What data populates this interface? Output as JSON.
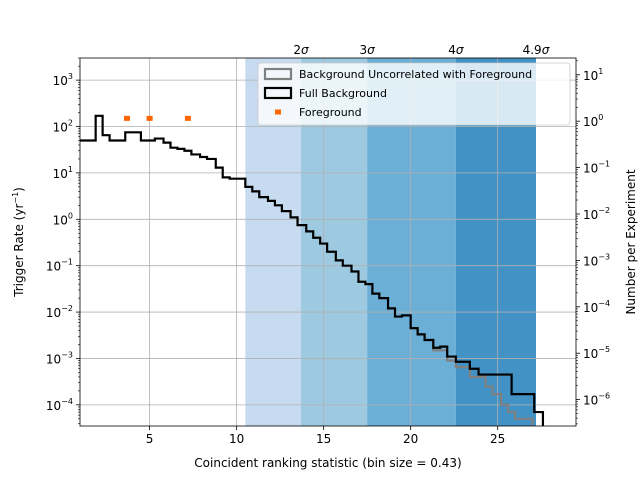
{
  "chart_data": {
    "type": "step-histogram",
    "xlabel": "Coincident ranking statistic (bin size = 0.43)",
    "ylabel_left": "Trigger Rate (yr",
    "ylabel_left_sup": "−1",
    "ylabel_left_close": ")",
    "ylabel_right": "Number per Experiment",
    "xlim": [
      1,
      29.5
    ],
    "ylim_left": [
      3.5e-05,
      3000
    ],
    "ylim_right": [
      2.7e-07,
      23
    ],
    "x_ticks": [
      5,
      10,
      15,
      20,
      25
    ],
    "y_left_ticks": [
      {
        "value": 0.0001,
        "base": "10",
        "exp": "−4"
      },
      {
        "value": 0.001,
        "base": "10",
        "exp": "−3"
      },
      {
        "value": 0.01,
        "base": "10",
        "exp": "−2"
      },
      {
        "value": 0.1,
        "base": "10",
        "exp": "−1"
      },
      {
        "value": 1,
        "base": "10",
        "exp": "0"
      },
      {
        "value": 10,
        "base": "10",
        "exp": "1"
      },
      {
        "value": 100,
        "base": "10",
        "exp": "2"
      },
      {
        "value": 1000,
        "base": "10",
        "exp": "3"
      }
    ],
    "y_right_ticks": [
      {
        "value": 1e-06,
        "base": "10",
        "exp": "−6"
      },
      {
        "value": 1e-05,
        "base": "10",
        "exp": "−5"
      },
      {
        "value": 0.0001,
        "base": "10",
        "exp": "−4"
      },
      {
        "value": 0.001,
        "base": "10",
        "exp": "−3"
      },
      {
        "value": 0.01,
        "base": "10",
        "exp": "−2"
      },
      {
        "value": 0.1,
        "base": "10",
        "exp": "−1"
      },
      {
        "value": 1,
        "base": "10",
        "exp": "0"
      },
      {
        "value": 10,
        "base": "10",
        "exp": "1"
      }
    ],
    "sigma_bands": [
      {
        "label": "2",
        "x_start": 10.5,
        "x_end": 13.7,
        "color": "#c6dbef"
      },
      {
        "label": "3",
        "x_start": 13.7,
        "x_end": 17.5,
        "color": "#9ecae1"
      },
      {
        "label": "4",
        "x_start": 17.5,
        "x_end": 22.6,
        "color": "#6baed6"
      },
      {
        "label": "4.9",
        "x_start": 22.6,
        "x_end": 27.2,
        "color": "#4292c6"
      }
    ],
    "sigma_symbol": "σ",
    "legend": {
      "placement": "upper-right",
      "entries": [
        {
          "label": "Background Uncorrelated with Foreground",
          "style": "box",
          "color": "#808080"
        },
        {
          "label": "Full Background",
          "style": "box",
          "color": "#000000"
        },
        {
          "label": "Foreground",
          "style": "marker",
          "color": "#ff6600"
        }
      ]
    },
    "series": [
      {
        "name": "Full Background",
        "color": "#000000",
        "edges": [
          1.0,
          1.9,
          2.3,
          2.7,
          3.6,
          4.5,
          5.3,
          5.8,
          6.2,
          6.6,
          7.0,
          7.4,
          7.9,
          8.3,
          8.8,
          9.2,
          9.6,
          10.0,
          10.5,
          10.9,
          11.3,
          11.8,
          12.2,
          12.6,
          13.1,
          13.5,
          14.0,
          14.4,
          14.8,
          15.2,
          15.7,
          16.1,
          16.6,
          17.0,
          17.4,
          17.8,
          18.2,
          18.7,
          19.1,
          19.5,
          20.0,
          20.4,
          20.8,
          21.3,
          21.7,
          22.1,
          22.6,
          23.0,
          23.4,
          23.9,
          25.8,
          26.2,
          26.7,
          27.1,
          27.6
        ],
        "values": [
          50,
          170,
          65,
          50,
          75,
          50,
          55,
          45,
          35,
          33,
          30,
          25,
          22,
          20,
          13,
          8,
          7.5,
          7.5,
          5,
          4,
          3,
          2.5,
          2,
          1.5,
          1.1,
          0.75,
          0.55,
          0.4,
          0.3,
          0.2,
          0.13,
          0.1,
          0.075,
          0.045,
          0.04,
          0.025,
          0.02,
          0.012,
          0.008,
          0.0085,
          0.0045,
          0.0033,
          0.0025,
          0.0017,
          0.0018,
          0.0011,
          0.00085,
          0.00085,
          0.0006,
          0.00045,
          0.00017,
          0.00017,
          0.00017,
          7e-05
        ]
      },
      {
        "name": "Background Uncorrelated with Foreground",
        "color": "#808080",
        "edges": [
          20.0,
          20.4,
          20.8,
          21.3,
          21.7,
          22.1,
          22.6,
          23.0,
          23.4,
          23.9,
          24.3,
          24.7,
          25.2,
          25.6,
          26.0,
          26.5,
          27.0
        ],
        "values": [
          0.0045,
          0.0033,
          0.0025,
          0.0015,
          0.0015,
          0.0009,
          0.00065,
          0.00065,
          0.0004,
          0.0004,
          0.00025,
          0.00017,
          0.0001,
          7e-05,
          5e-05,
          5e-05
        ]
      },
      {
        "name": "Foreground",
        "color": "#ff6600",
        "points": [
          {
            "x": 3.7,
            "y": 150
          },
          {
            "x": 5.0,
            "y": 150
          },
          {
            "x": 7.2,
            "y": 150
          }
        ]
      }
    ],
    "grid": true
  }
}
